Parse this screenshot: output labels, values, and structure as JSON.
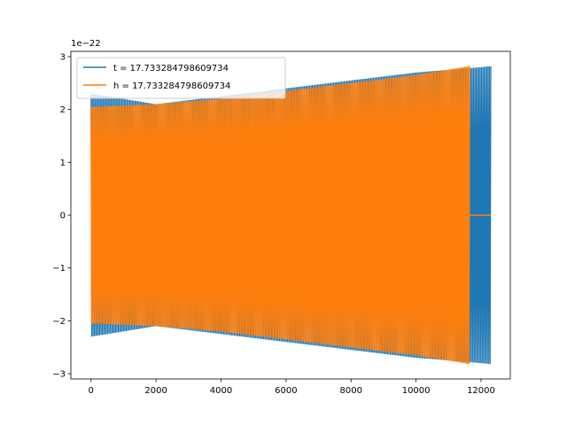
{
  "chart_data": {
    "type": "line",
    "title": "",
    "xlabel": "",
    "ylabel": "",
    "y_offset_label": "1e−22",
    "xlim": [
      -620,
      12900
    ],
    "ylim": [
      -3.1,
      3.1
    ],
    "xticks": [
      0,
      2000,
      4000,
      6000,
      8000,
      10000,
      12000
    ],
    "xtick_labels": [
      "0",
      "2000",
      "4000",
      "6000",
      "8000",
      "10000",
      "12000"
    ],
    "yticks": [
      3,
      2,
      1,
      0,
      -1,
      -2,
      -3
    ],
    "ytick_labels": [
      "3",
      "2",
      "1",
      "0",
      "−1",
      "−2",
      "−3"
    ],
    "grid": false,
    "legend_position": "upper-left",
    "series": [
      {
        "name": "t = 17.733284798609734",
        "color": "#1f77b4",
        "kind": "chirp",
        "x_start": 0,
        "x_end": 12300,
        "envelope": {
          "x": [
            0,
            2000,
            4000,
            6000,
            8000,
            10000,
            12000,
            12300
          ],
          "amp": [
            2.3,
            2.1,
            2.25,
            2.4,
            2.55,
            2.7,
            2.8,
            2.82
          ]
        },
        "after_end_value": null
      },
      {
        "name": "h = 17.733284798609734",
        "color": "#ff7f0e",
        "kind": "chirp",
        "x_start": 0,
        "x_end": 11650,
        "envelope": {
          "x": [
            0,
            2000,
            4000,
            6000,
            8000,
            10000,
            11650
          ],
          "amp": [
            2.05,
            2.1,
            2.2,
            2.35,
            2.5,
            2.65,
            2.82
          ]
        },
        "flat_segment": {
          "x": [
            11650,
            12300
          ],
          "value": 0
        }
      }
    ]
  }
}
